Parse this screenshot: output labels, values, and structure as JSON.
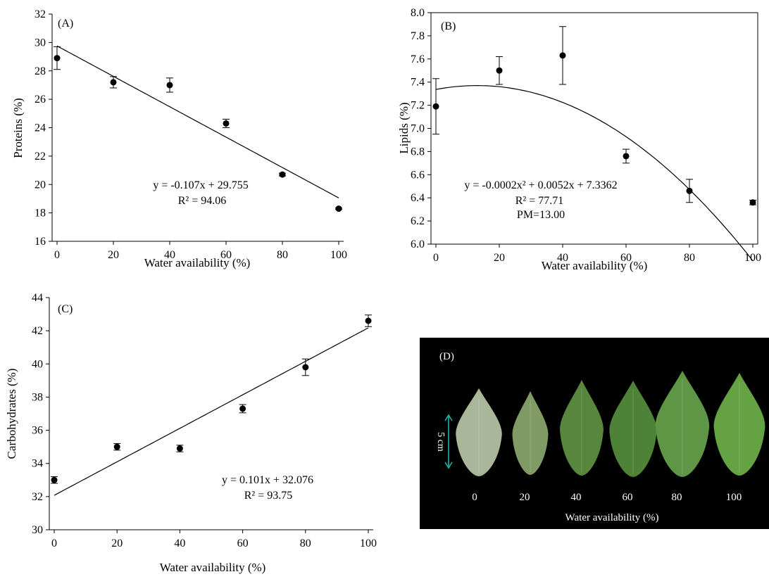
{
  "chart_data": [
    {
      "panel": "(A)",
      "type": "scatter",
      "xlabel": "Water availability (%)",
      "ylabel": "Proteins (%)",
      "xlim": [
        0,
        100
      ],
      "ylim": [
        16,
        32
      ],
      "xticks": [
        0,
        20,
        40,
        60,
        80,
        100
      ],
      "yticks": [
        16,
        18,
        20,
        22,
        24,
        26,
        28,
        30,
        32
      ],
      "x": [
        0,
        20,
        40,
        60,
        80,
        100
      ],
      "y": [
        28.9,
        27.2,
        27.0,
        24.3,
        20.7,
        18.3
      ],
      "error": [
        0.8,
        0.4,
        0.5,
        0.3,
        0.1,
        0.05
      ],
      "fit": {
        "kind": "linear",
        "coef": [
          29.755,
          -0.107
        ]
      },
      "equation": [
        "y = -0.107x + 29.755",
        "R² = 94.06"
      ],
      "grid": false
    },
    {
      "panel": "(B)",
      "type": "scatter",
      "xlabel": "Water availability (%)",
      "ylabel": "Lipids (%)",
      "xlim": [
        0,
        100
      ],
      "ylim": [
        6.0,
        8.0
      ],
      "xticks": [
        0,
        20,
        40,
        60,
        80,
        100
      ],
      "yticks": [
        "6.0",
        "6.2",
        "6.4",
        "6.6",
        "6.8",
        "7.0",
        "7.2",
        "7.4",
        "7.6",
        "7.8",
        "8.0"
      ],
      "x": [
        0,
        20,
        40,
        60,
        80,
        100
      ],
      "y": [
        7.19,
        7.5,
        7.63,
        6.76,
        6.46,
        6.36
      ],
      "error": [
        0.24,
        0.12,
        0.25,
        0.06,
        0.1,
        0.02
      ],
      "fit": {
        "kind": "quadratic",
        "coef": [
          7.3362,
          0.0052,
          -0.0002
        ]
      },
      "equation": [
        "y = -0.0002x² +  0.0052x + 7.3362",
        "R² = 77.71",
        "PM=13.00"
      ],
      "grid": false
    },
    {
      "panel": "(C)",
      "type": "scatter",
      "xlabel": "Water availability (%)",
      "ylabel": "Carbohydrates (%)",
      "xlim": [
        0,
        100
      ],
      "ylim": [
        30,
        44
      ],
      "xticks": [
        0,
        20,
        40,
        60,
        80,
        100
      ],
      "yticks": [
        30,
        32,
        34,
        36,
        38,
        40,
        42,
        44
      ],
      "x": [
        0,
        20,
        40,
        60,
        80,
        100
      ],
      "y": [
        33.0,
        35.0,
        34.9,
        37.3,
        39.8,
        42.6
      ],
      "error": [
        0.2,
        0.2,
        0.2,
        0.25,
        0.5,
        0.35
      ],
      "fit": {
        "kind": "linear",
        "coef": [
          32.076,
          0.101
        ]
      },
      "equation": [
        "y = 0.101x + 32.076",
        "R² = 93.75"
      ],
      "grid": false
    }
  ],
  "photo": {
    "panel": "(D)",
    "scale_label": "5 cm",
    "xlabel": "Water availability (%)",
    "labels": [
      "0",
      "20",
      "40",
      "60",
      "80",
      "100"
    ],
    "leaf_colors": [
      "#a9b69a",
      "#7f9a64",
      "#58863d",
      "#4e8236",
      "#5f9645",
      "#65a244"
    ],
    "background": "#000000",
    "scale_color": "#20b2aa"
  }
}
